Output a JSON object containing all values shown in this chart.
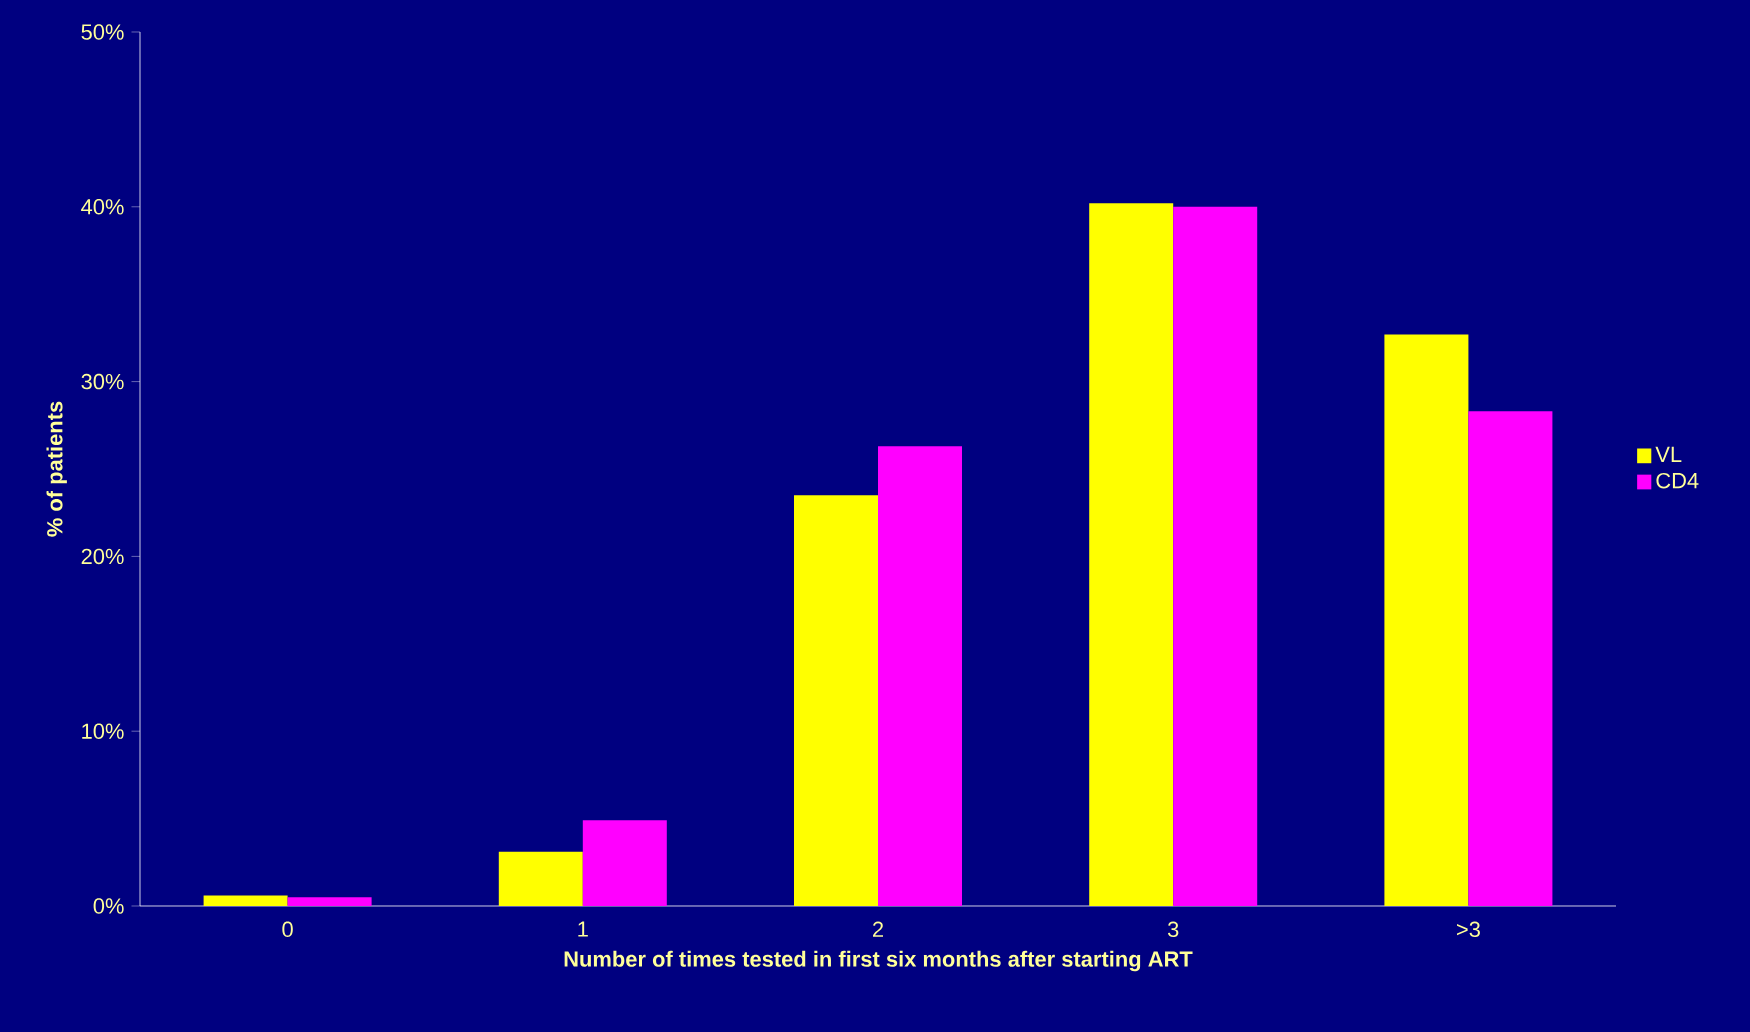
{
  "chart_data": {
    "type": "bar",
    "xlabel": "Number of times tested in first six months after starting ART",
    "ylabel": "% of patients",
    "categories": [
      "0",
      "1",
      "2",
      "3",
      ">3"
    ],
    "series": [
      {
        "name": "VL",
        "color": "#ffff00",
        "values": [
          0.6,
          3.1,
          23.5,
          40.2,
          32.7
        ]
      },
      {
        "name": "CD4",
        "color": "#ff00ff",
        "values": [
          0.5,
          4.9,
          26.3,
          40.0,
          28.3
        ]
      }
    ],
    "ylim": [
      0,
      50
    ],
    "yticks": [
      {
        "value": 0,
        "label": "0%"
      },
      {
        "value": 10,
        "label": "10%"
      },
      {
        "value": 20,
        "label": "20%"
      },
      {
        "value": 30,
        "label": "30%"
      },
      {
        "value": 40,
        "label": "40%"
      },
      {
        "value": 50,
        "label": "50%"
      }
    ],
    "legend": "right"
  }
}
